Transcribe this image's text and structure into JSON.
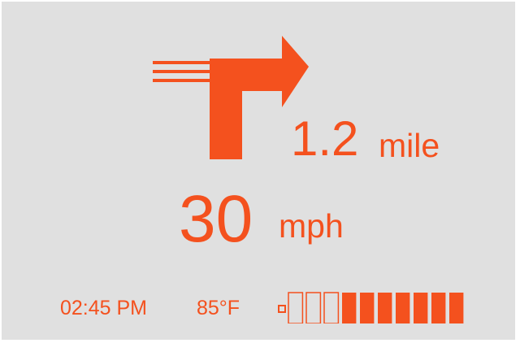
{
  "navigation": {
    "maneuver_icon": "turn-right-arrow-icon",
    "distance_value": "1.2",
    "distance_unit": "mile"
  },
  "speed": {
    "value": "30",
    "unit": "mph"
  },
  "status": {
    "time": "02:45 PM",
    "temperature": "85°F",
    "battery_icon": "battery-icon",
    "battery_level_segments": 7,
    "battery_total_segments": 10
  },
  "colors": {
    "accent": "#f4511e",
    "background": "#e0e0e0"
  }
}
